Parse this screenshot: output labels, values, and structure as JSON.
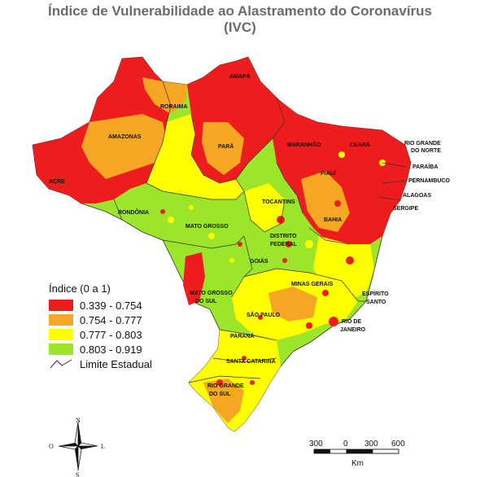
{
  "title_line1": "Índice de Vulnerabilidade ao Alastramento do Coronavírus",
  "title_line2": "(IVC)",
  "legend": {
    "title": "Índice (0 a 1)",
    "classes": [
      {
        "label": "0.339 - 0.754",
        "color": "#ee1c1c"
      },
      {
        "label": "0.754 - 0.777",
        "color": "#f5a623"
      },
      {
        "label": "0.777 - 0.803",
        "color": "#ffff00"
      },
      {
        "label": "0.803 - 0.919",
        "color": "#9be52a"
      }
    ],
    "boundary_label": "Limite Estadual"
  },
  "states": {
    "roraima": "RORAIMA",
    "amapa": "AMAPÁ",
    "amazonas": "AMAZONAS",
    "para": "PARÁ",
    "maranhao": "MARANHÃO",
    "ceara": "CEARÁ",
    "rgn1": "RIO GRANDE",
    "rgn2": "DO NORTE",
    "paraiba": "PARAÍBA",
    "pernambuco": "PERNAMBUCO",
    "alagoas": "ALAGOAS",
    "sergipe": "SERGIPE",
    "acre": "ACRE",
    "piaui": "PIAUÍ",
    "bahia": "BAHIA",
    "tocantins": "TOCANTINS",
    "rondonia": "RONDÔNIA",
    "mato_grosso": "MATO GROSSO",
    "df1": "DISTRITO",
    "df2": "FEDERAL",
    "goias": "GOIÁS",
    "minas": "MINAS GERAIS",
    "es1": "ESPÍRITO",
    "es2": "SANTO",
    "ms1": "MATO GROSSO",
    "ms2": "DO SUL",
    "sp": "SÃO PAULO",
    "rj1": "RIO DE",
    "rj2": "JANEIRO",
    "parana": "PARANÁ",
    "sc": "SANTA CATARINA",
    "rgs1": "RIO GRANDE",
    "rgs2": "DO SUL"
  },
  "compass": {
    "n": "N",
    "s": "S",
    "e": "L",
    "w": "O"
  },
  "scale": {
    "ticks": [
      "300",
      "0",
      "300",
      "600"
    ],
    "unit": "Km"
  }
}
